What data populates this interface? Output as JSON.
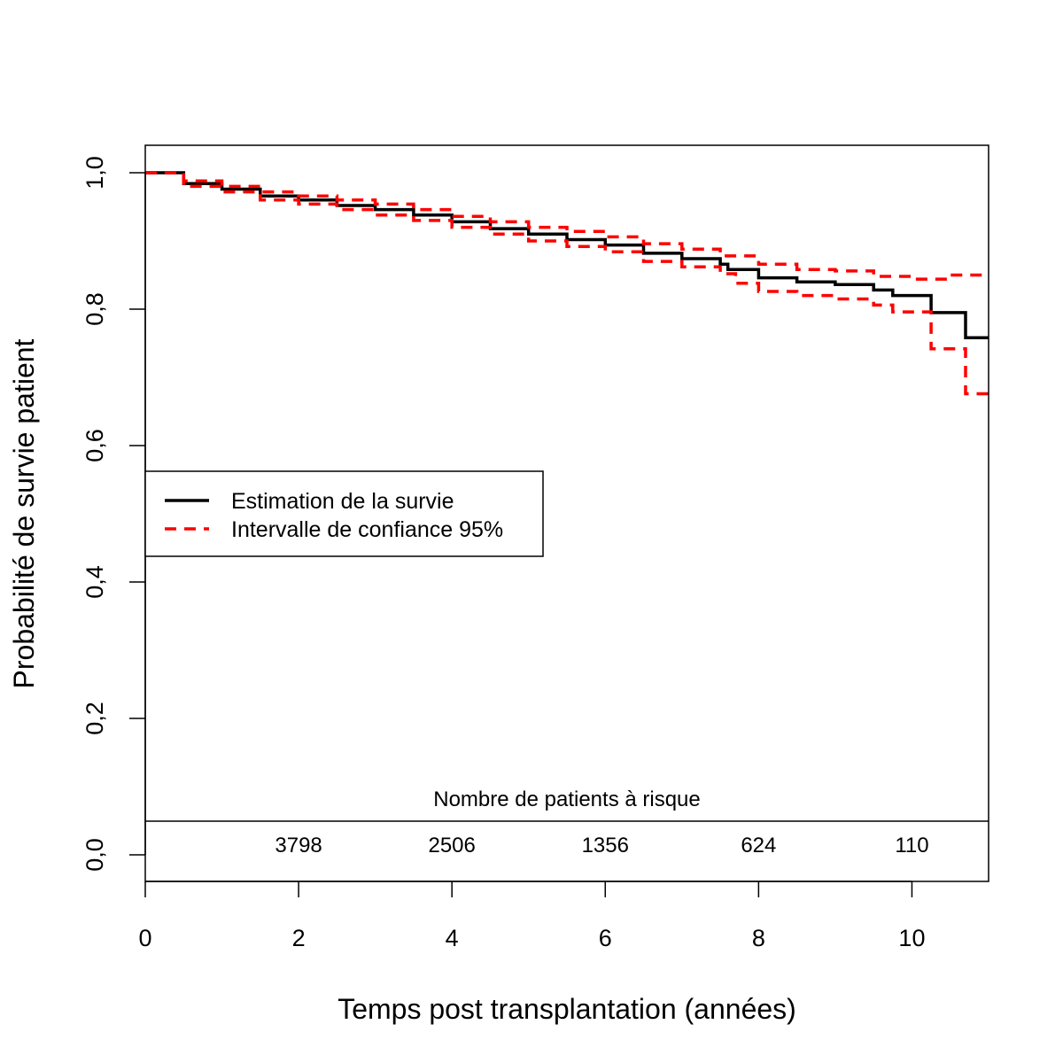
{
  "chart_data": {
    "type": "line",
    "title": "",
    "xlabel": "Temps post transplantation (années)",
    "ylabel": "Probabilité de survie patient",
    "xlim": [
      0,
      11
    ],
    "ylim": [
      0,
      1
    ],
    "x_ticks": [
      0,
      2,
      4,
      6,
      8,
      10
    ],
    "x_tick_labels": [
      "0",
      "2",
      "4",
      "6",
      "8",
      "10"
    ],
    "y_ticks": [
      0,
      0.2,
      0.4,
      0.6,
      0.8,
      1.0
    ],
    "y_tick_labels": [
      "0,0",
      "0,2",
      "0,4",
      "0,6",
      "0,8",
      "1,0"
    ],
    "grid": false,
    "legend_position": "middle-left",
    "colors": {
      "estimate": "#000000",
      "ci": "#ff0000"
    },
    "series": [
      {
        "name": "Estimation de la survie",
        "style": "solid",
        "step": true,
        "x": [
          0,
          0.5,
          1,
          1.5,
          2,
          2.5,
          3,
          3.5,
          4,
          4.5,
          5,
          5.5,
          6,
          6.5,
          7,
          7.5,
          7.6,
          8,
          8.5,
          9,
          9.5,
          9.75,
          10.25,
          10.7,
          11
        ],
        "values": [
          1.0,
          0.984,
          0.976,
          0.966,
          0.96,
          0.952,
          0.946,
          0.938,
          0.928,
          0.918,
          0.91,
          0.902,
          0.894,
          0.882,
          0.874,
          0.866,
          0.858,
          0.846,
          0.84,
          0.836,
          0.828,
          0.82,
          0.795,
          0.758,
          0.758
        ]
      },
      {
        "name": "Intervalle de confiance 95%",
        "style": "dashed",
        "step": true,
        "x": [
          0,
          0.5,
          1,
          1.5,
          2,
          2.5,
          3,
          3.5,
          4,
          4.5,
          5,
          5.5,
          6,
          6.5,
          7,
          7.5,
          8,
          8.5,
          9,
          9.5,
          10,
          10.5,
          11
        ],
        "values": [
          1.0,
          0.988,
          0.98,
          0.972,
          0.966,
          0.96,
          0.954,
          0.946,
          0.936,
          0.928,
          0.92,
          0.914,
          0.906,
          0.896,
          0.888,
          0.878,
          0.866,
          0.858,
          0.856,
          0.848,
          0.844,
          0.85,
          0.85
        ]
      },
      {
        "name": "Intervalle de confiance 95%",
        "style": "dashed",
        "step": true,
        "x": [
          0,
          0.5,
          1,
          1.5,
          2,
          2.5,
          3,
          3.5,
          4,
          4.5,
          5,
          5.5,
          6,
          6.5,
          7,
          7.5,
          7.7,
          8,
          8.5,
          9,
          9.5,
          9.75,
          10.25,
          10.7,
          11
        ],
        "values": [
          1.0,
          0.98,
          0.972,
          0.96,
          0.954,
          0.946,
          0.938,
          0.93,
          0.92,
          0.91,
          0.9,
          0.892,
          0.884,
          0.87,
          0.862,
          0.852,
          0.838,
          0.826,
          0.82,
          0.815,
          0.806,
          0.796,
          0.742,
          0.676,
          0.676
        ]
      }
    ],
    "risk_table": {
      "title": "Nombre de patients à risque",
      "x": [
        2,
        4,
        6,
        8,
        10
      ],
      "counts": [
        "3798",
        "2506",
        "1356",
        "624",
        "110"
      ]
    }
  }
}
